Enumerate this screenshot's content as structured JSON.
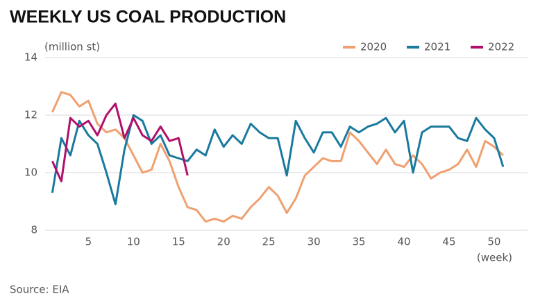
{
  "chart_data": {
    "type": "line",
    "title": "WEEKLY US COAL PRODUCTION",
    "y_label": "(million st)",
    "x_label": "(week)",
    "source": "Source: EIA",
    "legend": "top-right",
    "grid": true,
    "x": [
      1,
      2,
      3,
      4,
      5,
      6,
      7,
      8,
      9,
      10,
      11,
      12,
      13,
      14,
      15,
      16,
      17,
      18,
      19,
      20,
      21,
      22,
      23,
      24,
      25,
      26,
      27,
      28,
      29,
      30,
      31,
      32,
      33,
      34,
      35,
      36,
      37,
      38,
      39,
      40,
      41,
      42,
      43,
      44,
      45,
      46,
      47,
      48,
      49,
      50,
      51
    ],
    "xlim": [
      0.2,
      53.7
    ],
    "xticks": [
      5,
      10,
      15,
      20,
      25,
      30,
      35,
      40,
      45,
      50
    ],
    "ylim": [
      8,
      14
    ],
    "yticks": [
      8,
      10,
      12,
      14
    ],
    "series": [
      {
        "name": "2020",
        "color": "#f0a070",
        "values": [
          12.1,
          12.8,
          12.7,
          12.3,
          12.5,
          11.7,
          11.4,
          11.5,
          11.2,
          10.6,
          10.0,
          10.1,
          11.0,
          10.4,
          9.5,
          8.8,
          8.7,
          8.3,
          8.4,
          8.3,
          8.5,
          8.4,
          8.8,
          9.1,
          9.5,
          9.2,
          8.6,
          9.1,
          9.9,
          10.2,
          10.5,
          10.4,
          10.4,
          11.4,
          11.1,
          10.7,
          10.3,
          10.8,
          10.3,
          10.2,
          10.6,
          10.3,
          9.8,
          10.0,
          10.1,
          10.3,
          10.8,
          10.2,
          11.1,
          10.9,
          10.6
        ]
      },
      {
        "name": "2021",
        "color": "#1a7a9e",
        "values": [
          9.3,
          11.2,
          10.6,
          11.8,
          11.3,
          11.0,
          10.0,
          8.9,
          10.8,
          12.0,
          11.8,
          11.0,
          11.3,
          10.6,
          10.5,
          10.4,
          10.8,
          10.6,
          11.5,
          10.9,
          11.3,
          11.0,
          11.7,
          11.4,
          11.2,
          11.2,
          9.9,
          11.8,
          11.2,
          10.7,
          11.4,
          11.4,
          10.9,
          11.6,
          11.4,
          11.6,
          11.7,
          11.9,
          11.4,
          11.8,
          10.0,
          11.4,
          11.6,
          11.6,
          11.6,
          11.2,
          11.1,
          11.9,
          11.5,
          11.2,
          10.2
        ]
      },
      {
        "name": "2022",
        "color": "#b0106a",
        "values": [
          10.4,
          9.7,
          11.9,
          11.6,
          11.8,
          11.3,
          12.0,
          12.4,
          11.2,
          11.9,
          11.3,
          11.1,
          11.6,
          11.1,
          11.2,
          9.9,
          null,
          null,
          null,
          null,
          null,
          null,
          null,
          null,
          null,
          null,
          null,
          null,
          null,
          null,
          null,
          null,
          null,
          null,
          null,
          null,
          null,
          null,
          null,
          null,
          null,
          null,
          null,
          null,
          null,
          null,
          null,
          null,
          null,
          null,
          null
        ]
      }
    ]
  }
}
